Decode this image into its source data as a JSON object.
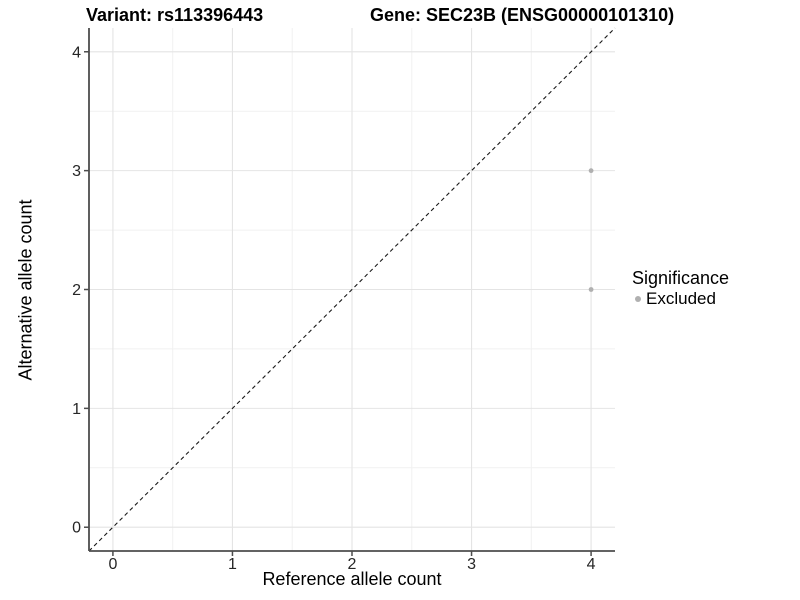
{
  "header": {
    "variant_title": "Variant: rs113396443",
    "gene_title": "Gene: SEC23B (ENSG00000101310)"
  },
  "chart_data": {
    "type": "scatter",
    "title": "Variant: rs113396443 | Gene: SEC23B (ENSG00000101310)",
    "xlabel": "Reference allele count",
    "ylabel": "Alternative allele count",
    "points": [
      {
        "x": 4,
        "y": 3,
        "series": "Excluded"
      },
      {
        "x": 4,
        "y": 2,
        "series": "Excluded"
      }
    ],
    "reference_line": {
      "type": "identity",
      "slope": 1,
      "intercept": 0,
      "style": "dashed"
    },
    "xlim": [
      -0.2,
      4.2
    ],
    "ylim": [
      -0.2,
      4.2
    ],
    "x_tick_values": [
      0,
      1,
      2,
      3,
      4
    ],
    "y_tick_values": [
      0,
      1,
      2,
      3,
      4
    ],
    "x_tick_labels": [
      "0",
      "1",
      "2",
      "3",
      "4"
    ],
    "y_tick_labels": [
      "0",
      "1",
      "2",
      "3",
      "4"
    ],
    "minor_tick_values": [
      0.5,
      1.5,
      2.5,
      3.5
    ],
    "grid": "on",
    "legend": {
      "title": "Significance",
      "position": "right",
      "items": [
        {
          "label": "Excluded",
          "color": "#b0b0b0"
        }
      ]
    }
  },
  "colors": {
    "background": "#ffffff",
    "point": "#b0b0b0",
    "grid_major": "#e4e4e4",
    "grid_minor": "#f1f1f1",
    "axis_line": "#4d4d4d",
    "tick_label": "#262626",
    "reference_line": "#1a1a1a"
  }
}
